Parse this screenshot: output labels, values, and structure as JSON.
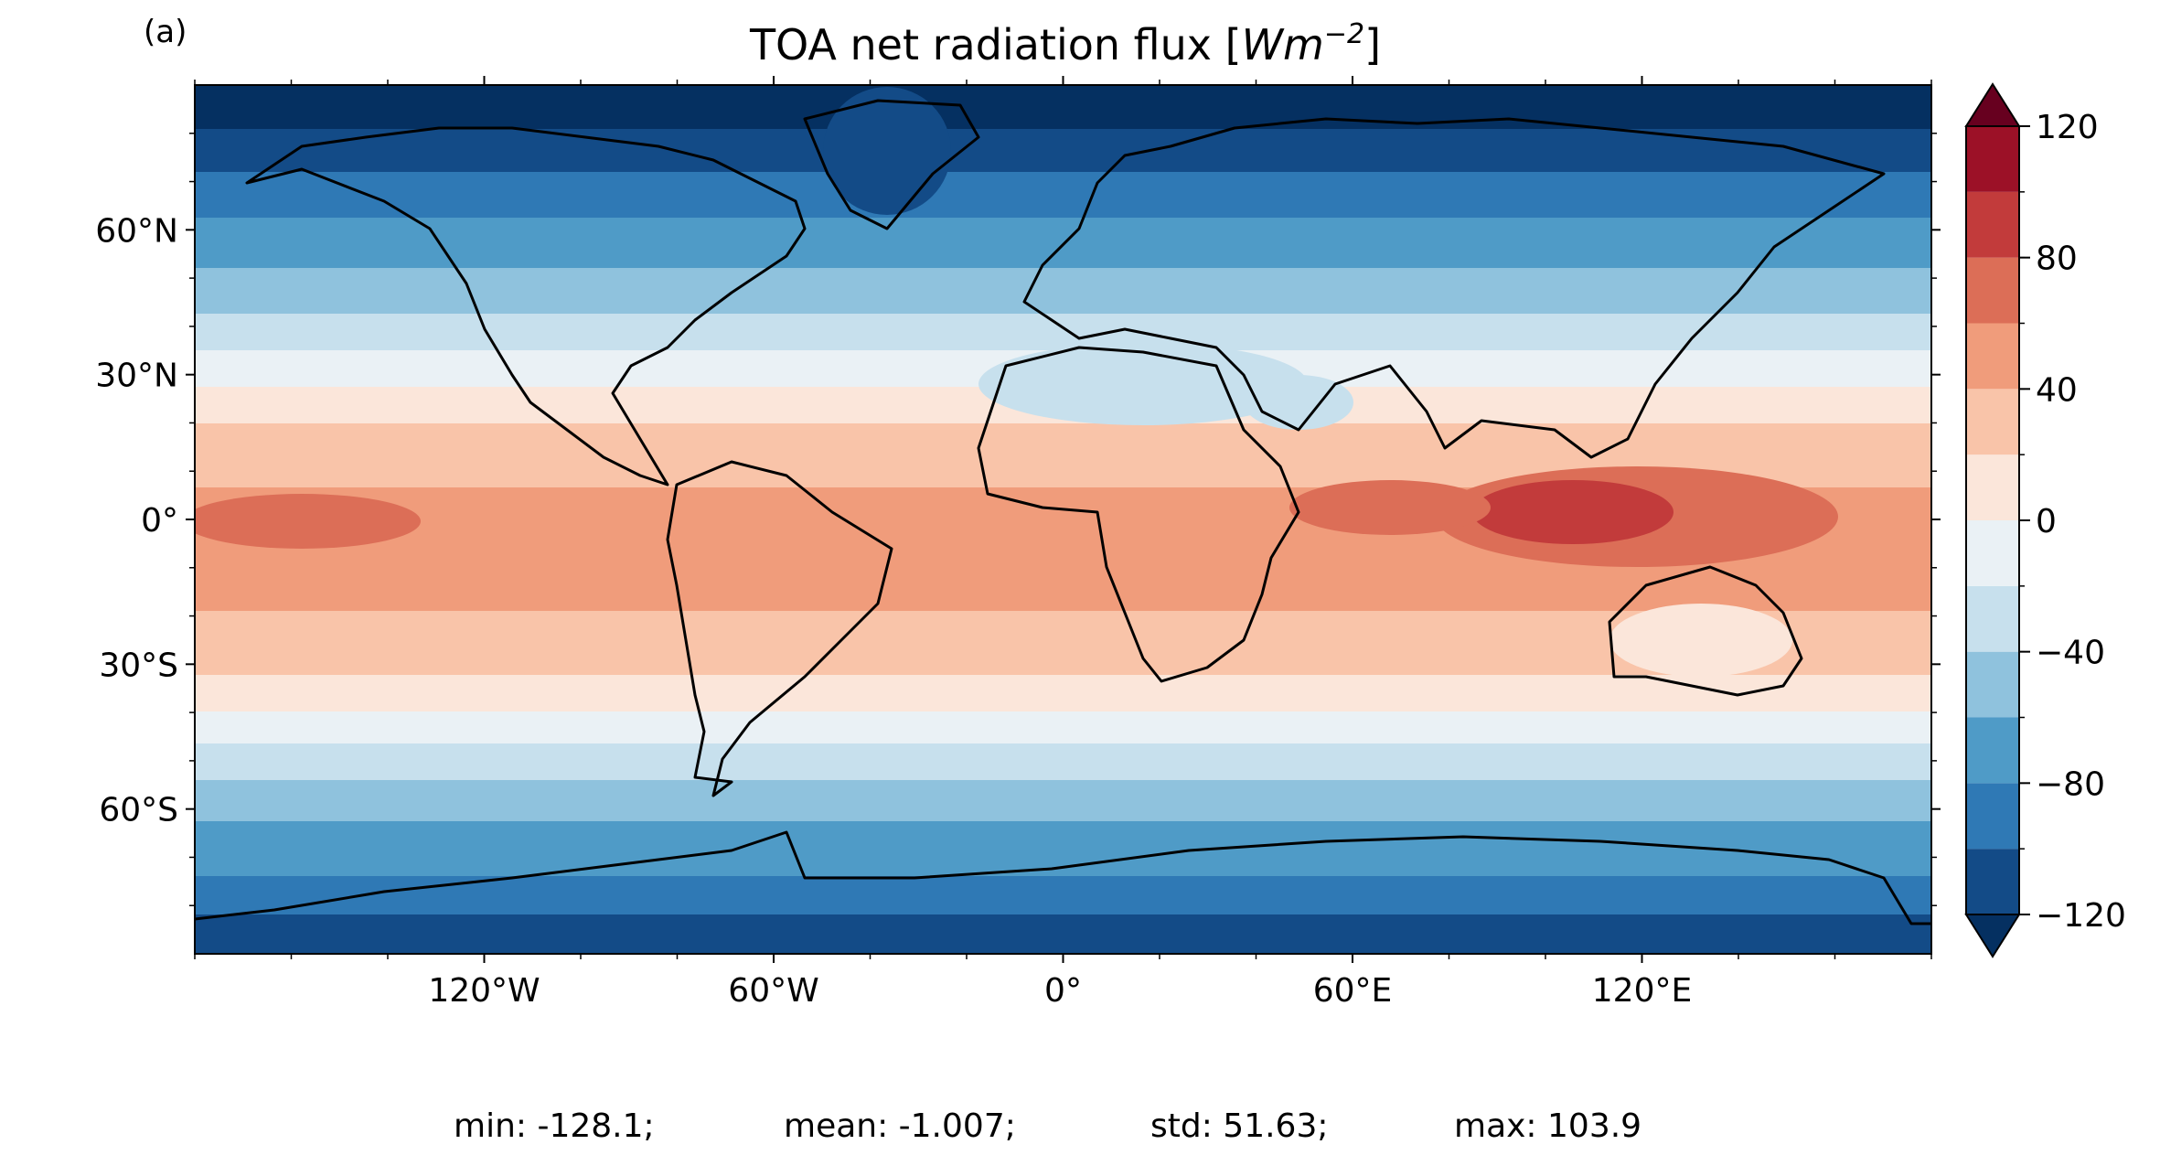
{
  "panel_label": "(a)",
  "title": {
    "main": "TOA net radiation flux [",
    "unit_base": "Wm",
    "unit_exp": "−2",
    "close": "]"
  },
  "lat_ticks": [
    {
      "value": 60,
      "label": "60°N"
    },
    {
      "value": 30,
      "label": "30°N"
    },
    {
      "value": 0,
      "label": "0°"
    },
    {
      "value": -30,
      "label": "30°S"
    },
    {
      "value": -60,
      "label": "60°S"
    }
  ],
  "lon_ticks": [
    {
      "value": -120,
      "label": "120°W"
    },
    {
      "value": -60,
      "label": "60°W"
    },
    {
      "value": 0,
      "label": "0°"
    },
    {
      "value": 60,
      "label": "60°E"
    },
    {
      "value": 120,
      "label": "120°E"
    }
  ],
  "colorbar": {
    "levels": [
      -120,
      -100,
      -80,
      -60,
      -40,
      -20,
      0,
      20,
      40,
      60,
      80,
      100,
      120
    ],
    "colors": [
      "#134b87",
      "#2f79b5",
      "#4f9bc7",
      "#8fc2dd",
      "#c7e0ed",
      "#eaf1f5",
      "#fbe6da",
      "#f9c4a9",
      "#f09c7b",
      "#dc6e57",
      "#c23b3b",
      "#9c1127"
    ],
    "under_color": "#053061",
    "over_color": "#67001f",
    "tick_values": [
      120,
      80,
      40,
      0,
      -40,
      -80,
      -120
    ],
    "tick_labels": [
      "120",
      "80",
      "40",
      "0",
      "−40",
      "−80",
      "−120"
    ]
  },
  "stats": {
    "min": "min: -128.1;",
    "mean": "mean: -1.007;",
    "std": "std: 51.63;",
    "max": "max: 103.9"
  }
}
